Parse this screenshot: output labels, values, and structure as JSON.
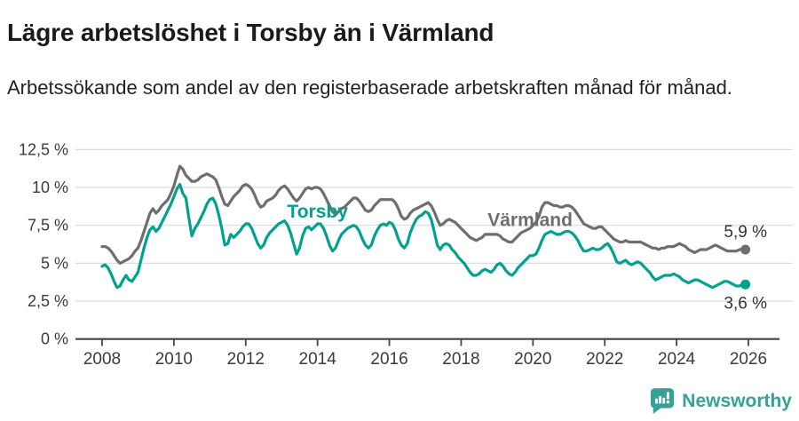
{
  "header": {
    "title": "Lägre arbetslöshet i Torsby än i Värmland",
    "subtitle": "Arbetssökande som andel av den registerbaserade arbetskraften månad för månad."
  },
  "footer": {
    "brand": "Newsworthy",
    "brand_color": "#35a29a"
  },
  "chart_data": {
    "type": "line",
    "title": "Lägre arbetslöshet i Torsby än i Värmland",
    "subtitle": "Arbetssökande som andel av den registerbaserade arbetskraften månad för månad.",
    "unit": "%",
    "grid": true,
    "legend_position": "inline-labels",
    "x_start_year": 2008,
    "points_per_year": 12,
    "x_range_years": [
      2008,
      2026
    ],
    "ylim": [
      0,
      12.5
    ],
    "y_ticks": [
      {
        "value": 12.5,
        "label": "12,5 %"
      },
      {
        "value": 10,
        "label": "10 %"
      },
      {
        "value": 7.5,
        "label": "7,5 %"
      },
      {
        "value": 5,
        "label": "5 %"
      },
      {
        "value": 2.5,
        "label": "2,5 %"
      },
      {
        "value": 0,
        "label": "0 %"
      }
    ],
    "x_ticks": [
      {
        "year": 2008,
        "label": "2008"
      },
      {
        "year": 2010,
        "label": "2010"
      },
      {
        "year": 2012,
        "label": "2012"
      },
      {
        "year": 2014,
        "label": "2014"
      },
      {
        "year": 2016,
        "label": "2016"
      },
      {
        "year": 2018,
        "label": "2018"
      },
      {
        "year": 2020,
        "label": "2020"
      },
      {
        "year": 2022,
        "label": "2022"
      },
      {
        "year": 2024,
        "label": "2024"
      },
      {
        "year": 2026,
        "label": "2026"
      }
    ],
    "colors": {
      "grid": "#dcdcdc",
      "axis": "#444444",
      "tick_text": "#3b3b3b",
      "value_label": "#333333"
    },
    "series": [
      {
        "name": "Värmland",
        "color": "#6e6e6e",
        "end_label": "5,9 %",
        "end_value": 5.9,
        "label_at": {
          "year": 2019.92,
          "value": 7.45
        },
        "values": [
          6.1,
          6.1,
          6.0,
          5.8,
          5.5,
          5.2,
          5.0,
          5.1,
          5.2,
          5.3,
          5.5,
          5.8,
          6.0,
          6.5,
          7.1,
          7.7,
          8.3,
          8.6,
          8.3,
          8.5,
          8.8,
          9.0,
          9.2,
          9.6,
          10.1,
          10.8,
          11.4,
          11.2,
          10.8,
          10.6,
          10.4,
          10.4,
          10.5,
          10.7,
          10.8,
          10.9,
          10.8,
          10.7,
          10.5,
          10.0,
          9.4,
          8.9,
          8.8,
          9.1,
          9.4,
          9.6,
          9.8,
          10.1,
          10.2,
          10.1,
          9.9,
          9.5,
          9.0,
          8.7,
          8.8,
          9.1,
          9.2,
          9.3,
          9.5,
          9.8,
          10.0,
          10.1,
          9.9,
          9.6,
          9.3,
          9.1,
          9.3,
          9.6,
          9.9,
          10.0,
          9.9,
          10.0,
          10.0,
          9.9,
          9.6,
          9.2,
          8.8,
          8.4,
          8.2,
          8.4,
          8.6,
          8.7,
          8.9,
          9.1,
          9.3,
          9.3,
          9.1,
          8.8,
          8.5,
          8.4,
          8.5,
          8.8,
          9.0,
          9.2,
          9.2,
          9.2,
          9.2,
          9.2,
          9.0,
          8.6,
          8.1,
          7.9,
          8.0,
          8.3,
          8.5,
          8.6,
          8.7,
          8.8,
          8.9,
          9.0,
          8.8,
          8.4,
          7.9,
          7.5,
          7.6,
          7.8,
          7.9,
          7.8,
          7.7,
          7.5,
          7.3,
          7.1,
          6.9,
          6.7,
          6.6,
          6.5,
          6.6,
          6.7,
          6.9,
          6.9,
          6.9,
          6.9,
          6.9,
          6.8,
          6.6,
          6.5,
          6.4,
          6.4,
          6.6,
          6.8,
          7.0,
          7.1,
          7.2,
          7.3,
          7.5,
          7.7,
          8.1,
          8.7,
          9.0,
          9.0,
          8.9,
          8.8,
          8.8,
          8.7,
          8.7,
          8.8,
          8.8,
          8.7,
          8.5,
          8.2,
          7.9,
          7.6,
          7.5,
          7.4,
          7.3,
          7.3,
          7.4,
          7.4,
          7.2,
          7.0,
          6.8,
          6.6,
          6.5,
          6.4,
          6.4,
          6.5,
          6.4,
          6.4,
          6.4,
          6.4,
          6.4,
          6.3,
          6.2,
          6.1,
          6.0,
          6.0,
          5.9,
          6.0,
          6.0,
          6.1,
          6.1,
          6.1,
          6.2,
          6.3,
          6.2,
          6.1,
          5.9,
          5.8,
          5.7,
          5.8,
          5.9,
          5.9,
          5.9,
          6.0,
          6.1,
          6.2,
          6.1,
          6.0,
          5.9,
          5.8,
          5.8,
          5.8,
          5.8,
          5.9,
          5.9,
          5.9
        ]
      },
      {
        "name": "Torsby",
        "color": "#00a28f",
        "end_label": "3,6 %",
        "end_value": 3.6,
        "label_at": {
          "year": 2014.0,
          "value": 8.0
        },
        "values": [
          4.8,
          4.9,
          4.7,
          4.3,
          3.8,
          3.4,
          3.5,
          3.9,
          4.2,
          3.9,
          3.8,
          4.1,
          4.4,
          5.2,
          6.0,
          6.7,
          7.2,
          7.4,
          7.1,
          7.3,
          7.7,
          8.1,
          8.5,
          8.9,
          9.4,
          9.9,
          10.2,
          9.6,
          9.3,
          8.0,
          6.8,
          7.3,
          7.6,
          8.0,
          8.4,
          8.9,
          9.2,
          9.3,
          8.9,
          8.2,
          7.3,
          6.2,
          6.3,
          6.9,
          6.7,
          6.9,
          7.1,
          7.4,
          7.6,
          7.6,
          7.3,
          6.8,
          6.3,
          6.0,
          6.2,
          6.7,
          7.0,
          7.2,
          7.4,
          7.6,
          7.7,
          7.8,
          7.5,
          7.0,
          6.3,
          5.6,
          6.0,
          6.8,
          7.3,
          7.4,
          7.2,
          7.4,
          7.6,
          7.6,
          7.3,
          6.8,
          6.2,
          5.8,
          6.0,
          6.5,
          6.9,
          7.1,
          7.3,
          7.4,
          7.5,
          7.4,
          7.1,
          6.6,
          6.2,
          6.0,
          6.2,
          6.8,
          7.2,
          7.5,
          7.6,
          7.5,
          7.7,
          7.6,
          7.2,
          6.6,
          6.2,
          6.0,
          6.3,
          7.0,
          7.5,
          7.9,
          8.1,
          8.2,
          8.4,
          8.3,
          7.9,
          7.1,
          6.2,
          5.9,
          6.2,
          6.3,
          6.2,
          5.9,
          5.7,
          5.4,
          5.2,
          5.0,
          4.7,
          4.4,
          4.2,
          4.2,
          4.3,
          4.5,
          4.6,
          4.5,
          4.4,
          4.6,
          4.9,
          5.0,
          4.8,
          4.5,
          4.3,
          4.2,
          4.4,
          4.7,
          4.9,
          5.1,
          5.3,
          5.5,
          5.5,
          5.6,
          6.0,
          6.5,
          6.9,
          7.0,
          7.1,
          7.0,
          6.9,
          6.9,
          7.0,
          7.1,
          7.1,
          7.0,
          6.8,
          6.5,
          6.1,
          5.8,
          5.8,
          5.9,
          6.0,
          5.9,
          5.9,
          6.0,
          6.2,
          6.3,
          6.0,
          5.6,
          5.1,
          5.0,
          5.1,
          5.2,
          5.0,
          4.9,
          5.0,
          5.1,
          5.0,
          4.8,
          4.6,
          4.4,
          4.1,
          3.9,
          4.0,
          4.1,
          4.2,
          4.2,
          4.2,
          4.3,
          4.2,
          4.1,
          3.9,
          3.8,
          3.7,
          3.8,
          3.9,
          3.9,
          3.8,
          3.7,
          3.6,
          3.5,
          3.4,
          3.5,
          3.6,
          3.7,
          3.8,
          3.8,
          3.7,
          3.6,
          3.5,
          3.5,
          3.6,
          3.6
        ]
      }
    ]
  }
}
